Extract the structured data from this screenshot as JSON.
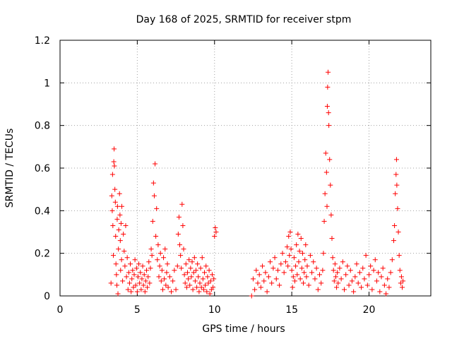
{
  "chart_data": {
    "type": "scatter",
    "title": "Day 168 of 2025, SRMTID for receiver stpm",
    "xlabel": "GPS time / hours",
    "ylabel": "SRMTID / TECUs",
    "xlim": [
      0,
      24
    ],
    "ylim": [
      0,
      1.2
    ],
    "xticks": [
      0,
      5,
      10,
      15,
      20
    ],
    "yticks": [
      0,
      0.2,
      0.4,
      0.6,
      0.8,
      1,
      1.2
    ],
    "xtick_labels": [
      "0",
      "5",
      "10",
      "15",
      "20"
    ],
    "ytick_labels": [
      "0",
      "0.2",
      "0.4",
      "0.6",
      "0.8",
      "1",
      "1.2"
    ],
    "grid": true,
    "marker": "+",
    "color": "#ff0000",
    "series": [
      {
        "name": "stpm",
        "points": [
          [
            3.3,
            0.06
          ],
          [
            3.35,
            0.47
          ],
          [
            3.38,
            0.4
          ],
          [
            3.4,
            0.57
          ],
          [
            3.42,
            0.33
          ],
          [
            3.45,
            0.19
          ],
          [
            3.48,
            0.63
          ],
          [
            3.5,
            0.69
          ],
          [
            3.52,
            0.61
          ],
          [
            3.55,
            0.5
          ],
          [
            3.58,
            0.44
          ],
          [
            3.6,
            0.28
          ],
          [
            3.62,
            0.15
          ],
          [
            3.65,
            0.1
          ],
          [
            3.68,
            0.05
          ],
          [
            3.7,
            0.36
          ],
          [
            3.72,
            0.42
          ],
          [
            3.75,
            0.01
          ],
          [
            3.78,
            0.22
          ],
          [
            3.8,
            0.31
          ],
          [
            3.85,
            0.48
          ],
          [
            3.88,
            0.38
          ],
          [
            3.9,
            0.26
          ],
          [
            3.92,
            0.12
          ],
          [
            3.95,
            0.34
          ],
          [
            3.98,
            0.17
          ],
          [
            4.0,
            0.42
          ],
          [
            4.05,
            0.07
          ],
          [
            4.1,
            0.29
          ],
          [
            4.15,
            0.21
          ],
          [
            4.2,
            0.14
          ],
          [
            4.25,
            0.33
          ],
          [
            4.3,
            0.09
          ],
          [
            4.35,
            0.18
          ],
          [
            4.4,
            0.03
          ],
          [
            4.45,
            0.11
          ],
          [
            4.5,
            0.06
          ],
          [
            4.55,
            0.15
          ],
          [
            4.6,
            0.02
          ],
          [
            4.65,
            0.08
          ],
          [
            4.7,
            0.12
          ],
          [
            4.75,
            0.04
          ],
          [
            4.8,
            0.1
          ],
          [
            4.85,
            0.17
          ],
          [
            4.9,
            0.05
          ],
          [
            4.95,
            0.13
          ],
          [
            5.0,
            0.02
          ],
          [
            5.05,
            0.09
          ],
          [
            5.1,
            0.15
          ],
          [
            5.15,
            0.06
          ],
          [
            5.2,
            0.11
          ],
          [
            5.25,
            0.03
          ],
          [
            5.3,
            0.08
          ],
          [
            5.35,
            0.14
          ],
          [
            5.4,
            0.05
          ],
          [
            5.45,
            0.1
          ],
          [
            5.5,
            0.02
          ],
          [
            5.55,
            0.07
          ],
          [
            5.6,
            0.12
          ],
          [
            5.65,
            0.04
          ],
          [
            5.7,
            0.09
          ],
          [
            5.75,
            0.16
          ],
          [
            5.8,
            0.06
          ],
          [
            5.85,
            0.13
          ],
          [
            5.9,
            0.22
          ],
          [
            5.95,
            0.19
          ],
          [
            6.0,
            0.35
          ],
          [
            6.05,
            0.53
          ],
          [
            6.1,
            0.47
          ],
          [
            6.15,
            0.62
          ],
          [
            6.2,
            0.28
          ],
          [
            6.25,
            0.41
          ],
          [
            6.3,
            0.17
          ],
          [
            6.35,
            0.24
          ],
          [
            6.4,
            0.09
          ],
          [
            6.45,
            0.14
          ],
          [
            6.5,
            0.2
          ],
          [
            6.55,
            0.07
          ],
          [
            6.6,
            0.12
          ],
          [
            6.65,
            0.03
          ],
          [
            6.7,
            0.18
          ],
          [
            6.75,
            0.08
          ],
          [
            6.8,
            0.22
          ],
          [
            6.85,
            0.05
          ],
          [
            6.9,
            0.11
          ],
          [
            6.95,
            0.15
          ],
          [
            7.0,
            0.04
          ],
          [
            7.1,
            0.09
          ],
          [
            7.2,
            0.02
          ],
          [
            7.3,
            0.07
          ],
          [
            7.4,
            0.12
          ],
          [
            7.5,
            0.03
          ],
          [
            7.6,
            0.14
          ],
          [
            7.65,
            0.29
          ],
          [
            7.7,
            0.37
          ],
          [
            7.75,
            0.24
          ],
          [
            7.8,
            0.19
          ],
          [
            7.85,
            0.13
          ],
          [
            7.9,
            0.43
          ],
          [
            7.95,
            0.33
          ],
          [
            8.0,
            0.22
          ],
          [
            8.05,
            0.1
          ],
          [
            8.1,
            0.06
          ],
          [
            8.15,
            0.15
          ],
          [
            8.2,
            0.04
          ],
          [
            8.25,
            0.11
          ],
          [
            8.3,
            0.08
          ],
          [
            8.35,
            0.17
          ],
          [
            8.4,
            0.05
          ],
          [
            8.45,
            0.13
          ],
          [
            8.5,
            0.09
          ],
          [
            8.55,
            0.16
          ],
          [
            8.6,
            0.03
          ],
          [
            8.65,
            0.11
          ],
          [
            8.7,
            0.18
          ],
          [
            8.75,
            0.07
          ],
          [
            8.8,
            0.12
          ],
          [
            8.85,
            0.04
          ],
          [
            8.9,
            0.15
          ],
          [
            8.95,
            0.09
          ],
          [
            9.0,
            0.02
          ],
          [
            9.05,
            0.06
          ],
          [
            9.1,
            0.13
          ],
          [
            9.15,
            0.04
          ],
          [
            9.2,
            0.18
          ],
          [
            9.25,
            0.08
          ],
          [
            9.3,
            0.03
          ],
          [
            9.35,
            0.11
          ],
          [
            9.4,
            0.05
          ],
          [
            9.45,
            0.14
          ],
          [
            9.5,
            0.02
          ],
          [
            9.55,
            0.09
          ],
          [
            9.6,
            0.06
          ],
          [
            9.65,
            0.12
          ],
          [
            9.7,
            0.01
          ],
          [
            9.75,
            0.07
          ],
          [
            9.8,
            0.03
          ],
          [
            9.85,
            0.1
          ],
          [
            9.9,
            0.04
          ],
          [
            9.95,
            0.08
          ],
          [
            10.0,
            0.28
          ],
          [
            10.05,
            0.32
          ],
          [
            10.1,
            0.3
          ],
          [
            12.4,
            0.0
          ],
          [
            12.5,
            0.08
          ],
          [
            12.6,
            0.03
          ],
          [
            12.7,
            0.12
          ],
          [
            12.8,
            0.06
          ],
          [
            12.9,
            0.1
          ],
          [
            13.0,
            0.04
          ],
          [
            13.1,
            0.14
          ],
          [
            13.2,
            0.07
          ],
          [
            13.3,
            0.11
          ],
          [
            13.4,
            0.02
          ],
          [
            13.5,
            0.09
          ],
          [
            13.6,
            0.16
          ],
          [
            13.7,
            0.06
          ],
          [
            13.8,
            0.13
          ],
          [
            13.9,
            0.18
          ],
          [
            14.0,
            0.08
          ],
          [
            14.1,
            0.12
          ],
          [
            14.2,
            0.05
          ],
          [
            14.3,
            0.15
          ],
          [
            14.4,
            0.2
          ],
          [
            14.5,
            0.11
          ],
          [
            14.6,
            0.16
          ],
          [
            14.7,
            0.23
          ],
          [
            14.75,
            0.14
          ],
          [
            14.8,
            0.28
          ],
          [
            14.85,
            0.19
          ],
          [
            14.9,
            0.3
          ],
          [
            14.95,
            0.22
          ],
          [
            15.0,
            0.12
          ],
          [
            15.05,
            0.04
          ],
          [
            15.1,
            0.09
          ],
          [
            15.15,
            0.18
          ],
          [
            15.2,
            0.07
          ],
          [
            15.25,
            0.14
          ],
          [
            15.3,
            0.24
          ],
          [
            15.35,
            0.1
          ],
          [
            15.4,
            0.29
          ],
          [
            15.45,
            0.16
          ],
          [
            15.5,
            0.21
          ],
          [
            15.55,
            0.08
          ],
          [
            15.6,
            0.27
          ],
          [
            15.65,
            0.13
          ],
          [
            15.7,
            0.2
          ],
          [
            15.75,
            0.06
          ],
          [
            15.8,
            0.11
          ],
          [
            15.85,
            0.17
          ],
          [
            15.9,
            0.24
          ],
          [
            15.95,
            0.09
          ],
          [
            16.0,
            0.14
          ],
          [
            16.1,
            0.05
          ],
          [
            16.2,
            0.19
          ],
          [
            16.3,
            0.11
          ],
          [
            16.4,
            0.16
          ],
          [
            16.5,
            0.08
          ],
          [
            16.6,
            0.13
          ],
          [
            16.7,
            0.03
          ],
          [
            16.8,
            0.1
          ],
          [
            16.9,
            0.06
          ],
          [
            17.0,
            0.12
          ],
          [
            17.05,
            0.2
          ],
          [
            17.1,
            0.35
          ],
          [
            17.15,
            0.48
          ],
          [
            17.2,
            0.67
          ],
          [
            17.25,
            0.58
          ],
          [
            17.28,
            0.42
          ],
          [
            17.3,
            0.89
          ],
          [
            17.32,
            0.98
          ],
          [
            17.35,
            1.05
          ],
          [
            17.38,
            0.86
          ],
          [
            17.4,
            0.8
          ],
          [
            17.45,
            0.64
          ],
          [
            17.5,
            0.52
          ],
          [
            17.55,
            0.38
          ],
          [
            17.6,
            0.27
          ],
          [
            17.65,
            0.18
          ],
          [
            17.7,
            0.12
          ],
          [
            17.75,
            0.07
          ],
          [
            17.8,
            0.15
          ],
          [
            17.85,
            0.09
          ],
          [
            17.9,
            0.04
          ],
          [
            17.95,
            0.11
          ],
          [
            18.0,
            0.06
          ],
          [
            18.1,
            0.13
          ],
          [
            18.2,
            0.08
          ],
          [
            18.3,
            0.16
          ],
          [
            18.4,
            0.03
          ],
          [
            18.5,
            0.1
          ],
          [
            18.6,
            0.14
          ],
          [
            18.7,
            0.05
          ],
          [
            18.8,
            0.12
          ],
          [
            18.9,
            0.07
          ],
          [
            19.0,
            0.02
          ],
          [
            19.1,
            0.09
          ],
          [
            19.2,
            0.15
          ],
          [
            19.3,
            0.06
          ],
          [
            19.4,
            0.11
          ],
          [
            19.5,
            0.04
          ],
          [
            19.6,
            0.13
          ],
          [
            19.7,
            0.08
          ],
          [
            19.8,
            0.19
          ],
          [
            19.9,
            0.05
          ],
          [
            20.0,
            0.1
          ],
          [
            20.1,
            0.14
          ],
          [
            20.2,
            0.03
          ],
          [
            20.3,
            0.12
          ],
          [
            20.4,
            0.17
          ],
          [
            20.5,
            0.07
          ],
          [
            20.6,
            0.11
          ],
          [
            20.7,
            0.02
          ],
          [
            20.8,
            0.09
          ],
          [
            20.9,
            0.13
          ],
          [
            21.0,
            0.05
          ],
          [
            21.1,
            0.01
          ],
          [
            21.2,
            0.08
          ],
          [
            21.3,
            0.04
          ],
          [
            21.4,
            0.11
          ],
          [
            21.5,
            0.17
          ],
          [
            21.6,
            0.26
          ],
          [
            21.65,
            0.33
          ],
          [
            21.7,
            0.48
          ],
          [
            21.75,
            0.57
          ],
          [
            21.78,
            0.64
          ],
          [
            21.8,
            0.52
          ],
          [
            21.85,
            0.41
          ],
          [
            21.9,
            0.3
          ],
          [
            21.95,
            0.19
          ],
          [
            22.0,
            0.12
          ],
          [
            22.05,
            0.06
          ],
          [
            22.1,
            0.09
          ],
          [
            22.15,
            0.04
          ],
          [
            22.2,
            0.07
          ]
        ]
      }
    ]
  }
}
